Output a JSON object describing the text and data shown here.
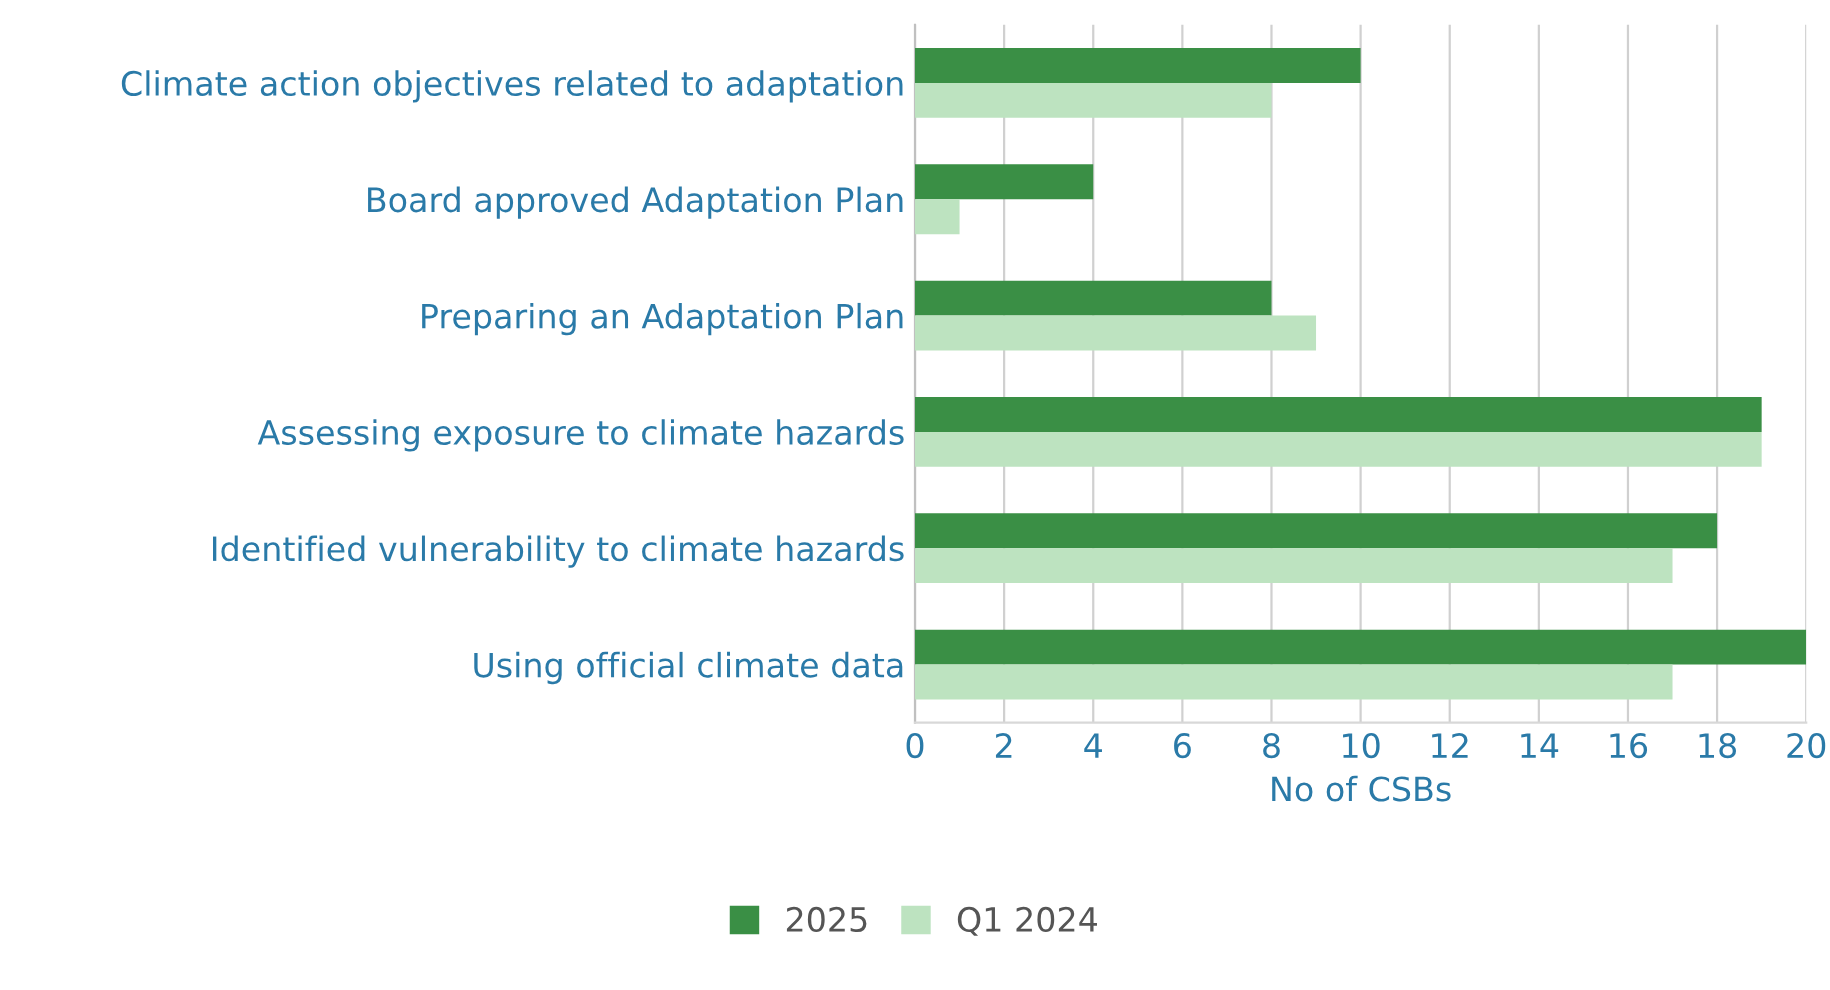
{
  "chart_data": {
    "type": "bar",
    "orientation": "horizontal",
    "xlabel": "No of CSBs",
    "categories": [
      "Climate action objectives related to adaptation",
      "Board approved Adaptation Plan",
      "Preparing an Adaptation Plan",
      "Assessing exposure to climate hazards",
      "Identified vulnerability to climate hazards",
      "Using official climate data"
    ],
    "series": [
      {
        "name": "2025",
        "color": "#3a8f45",
        "values": [
          10,
          4,
          8,
          19,
          18,
          20
        ]
      },
      {
        "name": "Q1 2024",
        "color": "#bde3c0",
        "values": [
          8,
          1,
          9,
          19,
          17,
          17
        ]
      }
    ],
    "xlim": [
      0,
      20
    ],
    "xticks": [
      0,
      2,
      4,
      6,
      8,
      10,
      12,
      14,
      16,
      18,
      20
    ],
    "grid": "x",
    "legend": "bottom"
  }
}
